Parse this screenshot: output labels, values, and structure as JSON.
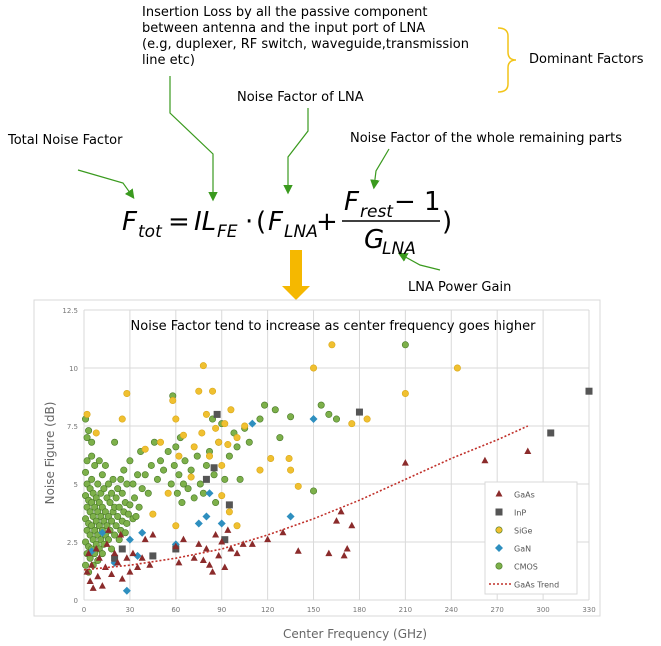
{
  "annotations": {
    "insertion_loss": "Insertion Loss by all the passive component between antenna and the input port of LNA (e.g, duplexer, RF switch, waveguide,transmission line etc)",
    "insertion_loss_lines": [
      "Insertion Loss by all the passive component",
      "between antenna and the input port of LNA",
      "(e.g, duplexer, RF switch, waveguide,transmission",
      "line etc)"
    ],
    "dominant_factors": "Dominant Factors",
    "noise_factor_lna": "Noise Factor of LNA",
    "total_noise_factor": "Total Noise Factor",
    "noise_factor_rest": "Noise Factor of the whole remaining parts",
    "lna_power_gain": "LNA Power Gain",
    "chart_caption": "Noise Factor tend to increase as center frequency goes higher"
  },
  "formula": {
    "lhs_main": "F",
    "lhs_sub": "tot",
    "il_main": "IL",
    "il_sub": "FE",
    "flna_main": "F",
    "flna_sub": "LNA",
    "frest_main": "F",
    "frest_sub": "rest",
    "minus_one": "− 1",
    "g_main": "G",
    "g_sub": "LNA",
    "equals": "=",
    "dot": "·",
    "plus": "+",
    "lparen": "(",
    "rparen": ")"
  },
  "colors": {
    "arrow_green": "#3a9a1e",
    "brace_yellow": "#f2c418",
    "down_arrow": "#f5b800",
    "gaas": "#8b2b2b",
    "inp": "#555555",
    "sige": "#f0c030",
    "gan": "#2e8fbf",
    "cmos": "#7db04a",
    "trend": "#c0302a",
    "grid": "#d9d9d9"
  },
  "chart_data": {
    "type": "scatter",
    "xlabel": "Center Frequency (GHz)",
    "ylabel": "Noise Figure (dB)",
    "xlim": [
      0,
      330
    ],
    "ylim": [
      0,
      12.5
    ],
    "xticks": [
      "0",
      "30",
      "60",
      "90",
      "120",
      "150",
      "180",
      "210",
      "240",
      "270",
      "300",
      "330"
    ],
    "yticks": [
      "0",
      "2.5",
      "5",
      "7.5",
      "10",
      "12.5"
    ],
    "grid": true,
    "legend_position": "bottom-right",
    "series": [
      {
        "name": "GaAs",
        "marker": "triangle",
        "points": [
          [
            2,
            1.2
          ],
          [
            3,
            2.0
          ],
          [
            4,
            0.8
          ],
          [
            5,
            1.5
          ],
          [
            6,
            0.5
          ],
          [
            8,
            2.2
          ],
          [
            9,
            1.0
          ],
          [
            10,
            1.8
          ],
          [
            12,
            0.6
          ],
          [
            14,
            1.4
          ],
          [
            15,
            2.4
          ],
          [
            16,
            3.0
          ],
          [
            18,
            1.1
          ],
          [
            20,
            2.0
          ],
          [
            22,
            1.6
          ],
          [
            24,
            2.8
          ],
          [
            25,
            0.9
          ],
          [
            28,
            1.8
          ],
          [
            30,
            1.2
          ],
          [
            32,
            2.0
          ],
          [
            35,
            1.4
          ],
          [
            38,
            1.8
          ],
          [
            40,
            2.6
          ],
          [
            43,
            1.5
          ],
          [
            45,
            2.8
          ],
          [
            60,
            2.3
          ],
          [
            62,
            1.6
          ],
          [
            65,
            2.6
          ],
          [
            72,
            1.8
          ],
          [
            75,
            2.4
          ],
          [
            78,
            1.7
          ],
          [
            80,
            2.2
          ],
          [
            82,
            1.5
          ],
          [
            84,
            1.2
          ],
          [
            86,
            2.8
          ],
          [
            88,
            1.9
          ],
          [
            90,
            2.5
          ],
          [
            92,
            1.4
          ],
          [
            94,
            3.0
          ],
          [
            96,
            2.2
          ],
          [
            100,
            2.0
          ],
          [
            104,
            2.4
          ],
          [
            110,
            2.4
          ],
          [
            120,
            2.6
          ],
          [
            130,
            2.9
          ],
          [
            140,
            2.1
          ],
          [
            160,
            2.0
          ],
          [
            165,
            3.4
          ],
          [
            168,
            3.8
          ],
          [
            170,
            1.9
          ],
          [
            172,
            2.2
          ],
          [
            175,
            3.2
          ],
          [
            210,
            5.9
          ],
          [
            262,
            6.0
          ],
          [
            290,
            6.4
          ]
        ]
      },
      {
        "name": "InP",
        "marker": "square",
        "points": [
          [
            20,
            1.8
          ],
          [
            25,
            2.2
          ],
          [
            45,
            1.9
          ],
          [
            60,
            2.2
          ],
          [
            80,
            5.2
          ],
          [
            85,
            5.7
          ],
          [
            87,
            8.0
          ],
          [
            92,
            2.6
          ],
          [
            95,
            4.1
          ],
          [
            180,
            8.1
          ],
          [
            305,
            7.2
          ],
          [
            330,
            9.0
          ]
        ]
      },
      {
        "name": "SiGe",
        "marker": "circle",
        "points": [
          [
            2,
            8.0
          ],
          [
            8,
            7.2
          ],
          [
            25,
            7.8
          ],
          [
            28,
            8.9
          ],
          [
            40,
            6.5
          ],
          [
            50,
            6.8
          ],
          [
            58,
            8.6
          ],
          [
            60,
            7.8
          ],
          [
            62,
            6.2
          ],
          [
            65,
            7.1
          ],
          [
            70,
            5.3
          ],
          [
            72,
            6.6
          ],
          [
            75,
            9.0
          ],
          [
            77,
            7.2
          ],
          [
            78,
            10.1
          ],
          [
            80,
            8.0
          ],
          [
            82,
            6.2
          ],
          [
            84,
            9.0
          ],
          [
            86,
            7.4
          ],
          [
            88,
            6.8
          ],
          [
            90,
            5.8
          ],
          [
            92,
            7.6
          ],
          [
            94,
            6.7
          ],
          [
            96,
            8.2
          ],
          [
            100,
            7.0
          ],
          [
            105,
            7.5
          ],
          [
            115,
            5.6
          ],
          [
            122,
            6.1
          ],
          [
            134,
            6.1
          ],
          [
            135,
            5.6
          ],
          [
            140,
            4.9
          ],
          [
            150,
            10.0
          ],
          [
            162,
            11.0
          ],
          [
            175,
            7.6
          ],
          [
            185,
            7.8
          ],
          [
            210,
            8.9
          ],
          [
            244,
            10.0
          ],
          [
            90,
            4.5
          ],
          [
            95,
            3.8
          ],
          [
            100,
            3.2
          ],
          [
            60,
            3.2
          ],
          [
            55,
            4.6
          ],
          [
            45,
            3.7
          ]
        ]
      },
      {
        "name": "GaN",
        "marker": "diamond",
        "points": [
          [
            5,
            2.1
          ],
          [
            12,
            2.9
          ],
          [
            20,
            1.6
          ],
          [
            28,
            0.4
          ],
          [
            30,
            2.6
          ],
          [
            35,
            1.9
          ],
          [
            38,
            2.9
          ],
          [
            60,
            2.4
          ],
          [
            75,
            3.3
          ],
          [
            80,
            3.6
          ],
          [
            82,
            4.6
          ],
          [
            90,
            3.3
          ],
          [
            110,
            7.6
          ],
          [
            135,
            3.6
          ],
          [
            150,
            7.8
          ]
        ]
      },
      {
        "name": "CMOS",
        "marker": "circle",
        "points": [
          [
            1,
            1.5
          ],
          [
            1,
            2.5
          ],
          [
            1,
            3.5
          ],
          [
            1,
            4.5
          ],
          [
            1,
            5.5
          ],
          [
            2,
            2.0
          ],
          [
            2,
            3.0
          ],
          [
            2,
            4.0
          ],
          [
            2,
            5.0
          ],
          [
            2,
            6.0
          ],
          [
            3,
            1.2
          ],
          [
            3,
            2.3
          ],
          [
            3,
            3.3
          ],
          [
            3,
            4.3
          ],
          [
            3,
            7.3
          ],
          [
            4,
            1.8
          ],
          [
            4,
            2.8
          ],
          [
            4,
            3.8
          ],
          [
            4,
            4.8
          ],
          [
            5,
            2.2
          ],
          [
            5,
            3.2
          ],
          [
            5,
            4.2
          ],
          [
            5,
            5.2
          ],
          [
            5,
            6.2
          ],
          [
            6,
            1.5
          ],
          [
            6,
            2.6
          ],
          [
            6,
            3.6
          ],
          [
            6,
            4.6
          ],
          [
            7,
            2.0
          ],
          [
            7,
            3.0
          ],
          [
            7,
            4.0
          ],
          [
            7,
            5.8
          ],
          [
            8,
            2.4
          ],
          [
            8,
            3.4
          ],
          [
            8,
            4.4
          ],
          [
            9,
            1.7
          ],
          [
            9,
            2.8
          ],
          [
            9,
            3.8
          ],
          [
            9,
            5.0
          ],
          [
            10,
            2.2
          ],
          [
            10,
            3.2
          ],
          [
            10,
            4.2
          ],
          [
            10,
            6.0
          ],
          [
            11,
            2.6
          ],
          [
            11,
            3.6
          ],
          [
            11,
            4.6
          ],
          [
            12,
            2.0
          ],
          [
            12,
            3.0
          ],
          [
            12,
            4.0
          ],
          [
            12,
            5.4
          ],
          [
            13,
            2.4
          ],
          [
            13,
            3.4
          ],
          [
            13,
            4.8
          ],
          [
            14,
            2.8
          ],
          [
            14,
            3.8
          ],
          [
            14,
            5.8
          ],
          [
            15,
            3.2
          ],
          [
            15,
            4.4
          ],
          [
            16,
            2.6
          ],
          [
            16,
            3.6
          ],
          [
            16,
            5.0
          ],
          [
            17,
            3.0
          ],
          [
            17,
            4.2
          ],
          [
            18,
            2.2
          ],
          [
            18,
            3.4
          ],
          [
            18,
            4.6
          ],
          [
            19,
            3.8
          ],
          [
            19,
            5.2
          ],
          [
            20,
            2.8
          ],
          [
            20,
            4.0
          ],
          [
            20,
            6.8
          ],
          [
            21,
            3.2
          ],
          [
            21,
            4.4
          ],
          [
            22,
            3.6
          ],
          [
            22,
            4.8
          ],
          [
            23,
            2.6
          ],
          [
            23,
            4.0
          ],
          [
            24,
            3.0
          ],
          [
            24,
            5.2
          ],
          [
            25,
            3.4
          ],
          [
            25,
            4.6
          ],
          [
            26,
            3.8
          ],
          [
            26,
            5.6
          ],
          [
            27,
            2.9
          ],
          [
            27,
            4.2
          ],
          [
            28,
            3.3
          ],
          [
            28,
            5.0
          ],
          [
            29,
            3.7
          ],
          [
            30,
            4.1
          ],
          [
            30,
            6.0
          ],
          [
            32,
            3.5
          ],
          [
            32,
            5.0
          ],
          [
            33,
            4.4
          ],
          [
            34,
            3.6
          ],
          [
            35,
            5.4
          ],
          [
            36,
            4.0
          ],
          [
            37,
            6.4
          ],
          [
            38,
            4.8
          ],
          [
            40,
            5.4
          ],
          [
            42,
            4.6
          ],
          [
            44,
            5.8
          ],
          [
            46,
            6.8
          ],
          [
            48,
            5.2
          ],
          [
            50,
            6.0
          ],
          [
            52,
            5.6
          ],
          [
            55,
            6.4
          ],
          [
            57,
            5.0
          ],
          [
            58,
            8.8
          ],
          [
            59,
            5.8
          ],
          [
            60,
            6.6
          ],
          [
            61,
            4.6
          ],
          [
            62,
            5.4
          ],
          [
            63,
            7.0
          ],
          [
            64,
            4.2
          ],
          [
            65,
            5.0
          ],
          [
            66,
            6.0
          ],
          [
            68,
            4.8
          ],
          [
            70,
            5.6
          ],
          [
            72,
            4.4
          ],
          [
            74,
            6.2
          ],
          [
            76,
            5.0
          ],
          [
            78,
            4.6
          ],
          [
            80,
            5.8
          ],
          [
            82,
            6.4
          ],
          [
            84,
            7.8
          ],
          [
            85,
            5.4
          ],
          [
            86,
            4.2
          ],
          [
            88,
            6.8
          ],
          [
            90,
            7.6
          ],
          [
            92,
            5.2
          ],
          [
            95,
            6.2
          ],
          [
            98,
            7.2
          ],
          [
            100,
            6.6
          ],
          [
            102,
            5.2
          ],
          [
            105,
            7.4
          ],
          [
            108,
            6.8
          ],
          [
            115,
            7.8
          ],
          [
            118,
            8.4
          ],
          [
            125,
            8.2
          ],
          [
            128,
            7.0
          ],
          [
            135,
            7.9
          ],
          [
            150,
            4.7
          ],
          [
            155,
            8.4
          ],
          [
            160,
            8.0
          ],
          [
            165,
            7.8
          ],
          [
            210,
            11.0
          ],
          [
            1,
            7.8
          ],
          [
            2,
            7.0
          ],
          [
            5,
            6.8
          ]
        ]
      }
    ],
    "trend": {
      "name": "GaAs Trend",
      "style": "dotted",
      "points": [
        [
          0,
          1.3
        ],
        [
          30,
          1.5
        ],
        [
          60,
          1.8
        ],
        [
          90,
          2.2
        ],
        [
          120,
          2.8
        ],
        [
          150,
          3.5
        ],
        [
          180,
          4.3
        ],
        [
          210,
          5.2
        ],
        [
          240,
          6.1
        ],
        [
          270,
          6.9
        ],
        [
          290,
          7.5
        ]
      ]
    }
  }
}
